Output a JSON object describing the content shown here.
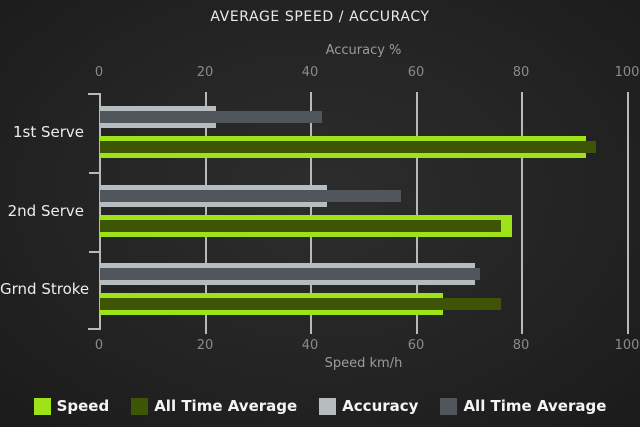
{
  "title": "AVERAGE SPEED / ACCURACY",
  "chart_data": {
    "type": "bar",
    "orientation": "horizontal",
    "title": "AVERAGE SPEED / ACCURACY",
    "categories": [
      "1st Serve",
      "2nd Serve",
      "Grnd Stroke"
    ],
    "axes": {
      "top": {
        "label": "Accuracy %",
        "ticks": [
          0,
          20,
          40,
          60,
          80,
          100
        ],
        "range": [
          0,
          100
        ]
      },
      "bottom": {
        "label": "Speed km/h",
        "ticks": [
          0,
          20,
          40,
          60,
          80,
          100
        ],
        "range": [
          0,
          100
        ]
      }
    },
    "grid": true,
    "legend_position": "bottom",
    "series": [
      {
        "name": "Speed",
        "axis": "bottom",
        "role": "outer",
        "color": "#9de318",
        "values": [
          92,
          78,
          65
        ]
      },
      {
        "name": "All Time Average",
        "axis": "bottom",
        "role": "overlay",
        "color": "#3e5506",
        "values": [
          94,
          76,
          76
        ]
      },
      {
        "name": "Accuracy",
        "axis": "top",
        "role": "outer",
        "color": "#b7bcbf",
        "values": [
          22,
          43,
          71
        ]
      },
      {
        "name": "All Time Average",
        "axis": "top",
        "role": "overlay",
        "color": "#51565d",
        "values": [
          42,
          57,
          72
        ]
      }
    ]
  }
}
